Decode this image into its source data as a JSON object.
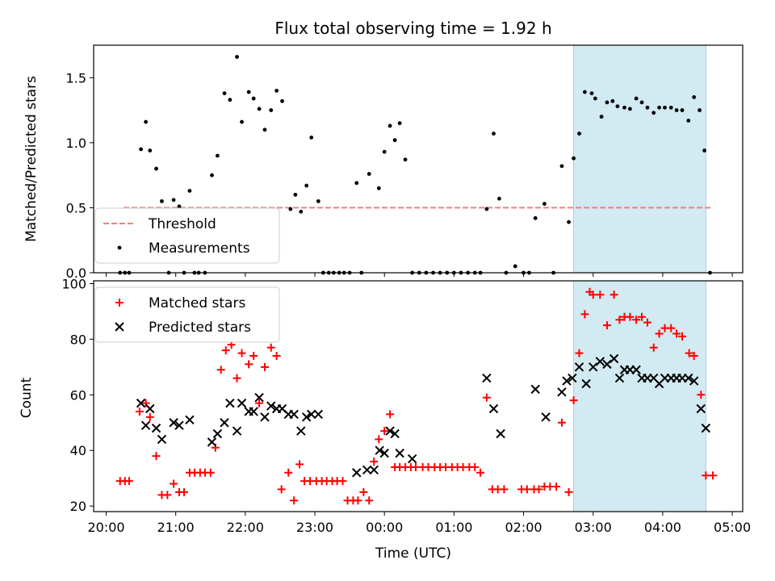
{
  "chart_data": [
    {
      "type": "scatter",
      "title": "Flux total observing time = 1.92 h",
      "xlabel": "",
      "ylabel": "Matched/Predicted stars",
      "xlim": [
        19.82,
        29.15
      ],
      "ylim": [
        0,
        1.75
      ],
      "yticks": [
        {
          "v": 0,
          "label": "0.0"
        },
        {
          "v": 0.5,
          "label": "0.5"
        },
        {
          "v": 1.0,
          "label": "1.0"
        },
        {
          "v": 1.5,
          "label": "1.5"
        }
      ],
      "shaded_region": {
        "x": [
          26.72,
          28.62
        ]
      },
      "legend": {
        "position": "lower-left",
        "entries": [
          "Threshold",
          "Measurements"
        ]
      },
      "series": [
        {
          "name": "Threshold",
          "style": "dashed-line",
          "color": "#f08080",
          "x": [
            20.25,
            28.7
          ],
          "y": [
            0.5,
            0.5
          ]
        },
        {
          "name": "Measurements",
          "style": "dot",
          "color": "#000000",
          "x": [
            20.2,
            20.27,
            20.33,
            20.5,
            20.57,
            20.63,
            20.72,
            20.8,
            20.9,
            20.97,
            21.05,
            21.12,
            21.2,
            21.27,
            21.33,
            21.42,
            21.52,
            21.6,
            21.7,
            21.78,
            21.88,
            21.95,
            22.05,
            22.12,
            22.2,
            22.28,
            22.37,
            22.45,
            22.53,
            22.65,
            22.72,
            22.8,
            22.88,
            22.95,
            23.05,
            23.12,
            23.2,
            23.27,
            23.35,
            23.42,
            23.5,
            23.6,
            23.67,
            23.78,
            23.92,
            24.0,
            24.08,
            24.15,
            24.22,
            24.3,
            24.4,
            24.5,
            24.6,
            24.7,
            24.8,
            24.9,
            25.0,
            25.1,
            25.2,
            25.3,
            25.38,
            25.47,
            25.57,
            25.65,
            25.75,
            25.88,
            26.0,
            26.08,
            26.17,
            26.3,
            26.43,
            26.55,
            26.65,
            26.72,
            26.8,
            26.88,
            26.98,
            27.03,
            27.12,
            27.2,
            27.28,
            27.35,
            27.45,
            27.53,
            27.62,
            27.7,
            27.78,
            27.87,
            27.95,
            28.03,
            28.12,
            28.2,
            28.28,
            28.37,
            28.45,
            28.53,
            28.6,
            28.68
          ],
          "y": [
            0,
            0,
            0,
            0.95,
            1.16,
            0.94,
            0.8,
            0.55,
            0,
            0.56,
            0.51,
            0,
            0.63,
            0,
            0,
            0,
            0.75,
            0.9,
            1.38,
            1.33,
            1.66,
            1.16,
            1.39,
            1.34,
            1.26,
            1.1,
            1.25,
            1.4,
            1.32,
            0.49,
            0.6,
            0.47,
            0.67,
            1.04,
            0.55,
            0,
            0,
            0,
            0,
            0,
            0,
            0.69,
            0,
            0.76,
            0.65,
            0.93,
            1.13,
            1.02,
            1.15,
            0.87,
            0,
            0,
            0,
            0,
            0,
            0,
            0,
            0,
            0,
            0,
            0,
            0.49,
            1.07,
            0.57,
            0,
            0.05,
            0,
            0,
            0.42,
            0.53,
            0,
            0.82,
            0.39,
            0.88,
            1.07,
            1.39,
            1.38,
            1.34,
            1.2,
            1.31,
            1.32,
            1.28,
            1.27,
            1.26,
            1.34,
            1.31,
            1.27,
            1.23,
            1.27,
            1.27,
            1.27,
            1.25,
            1.25,
            1.17,
            1.35,
            1.25,
            0.94,
            0
          ]
        }
      ]
    },
    {
      "type": "scatter",
      "title": "",
      "xlabel": "Time (UTC)",
      "ylabel": "Count",
      "xlim": [
        19.82,
        29.15
      ],
      "ylim": [
        18,
        101
      ],
      "xticks": [
        {
          "v": 20,
          "label": "20:00"
        },
        {
          "v": 21,
          "label": "21:00"
        },
        {
          "v": 22,
          "label": "22:00"
        },
        {
          "v": 23,
          "label": "23:00"
        },
        {
          "v": 24,
          "label": "00:00"
        },
        {
          "v": 25,
          "label": "01:00"
        },
        {
          "v": 26,
          "label": "02:00"
        },
        {
          "v": 27,
          "label": "03:00"
        },
        {
          "v": 28,
          "label": "04:00"
        },
        {
          "v": 29,
          "label": "05:00"
        }
      ],
      "yticks": [
        {
          "v": 20,
          "label": "20"
        },
        {
          "v": 40,
          "label": "40"
        },
        {
          "v": 60,
          "label": "60"
        },
        {
          "v": 80,
          "label": "80"
        },
        {
          "v": 100,
          "label": "100"
        }
      ],
      "shaded_region": {
        "x": [
          26.72,
          28.62
        ]
      },
      "legend": {
        "position": "upper-left",
        "entries": [
          "Matched stars",
          "Predicted stars"
        ]
      },
      "series": [
        {
          "name": "Matched stars",
          "style": "plus",
          "color": "#ff0000",
          "x": [
            20.2,
            20.27,
            20.33,
            20.48,
            20.57,
            20.63,
            20.72,
            20.8,
            20.88,
            20.97,
            21.05,
            21.12,
            21.2,
            21.27,
            21.35,
            21.42,
            21.5,
            21.57,
            21.65,
            21.72,
            21.8,
            21.88,
            21.95,
            22.05,
            22.12,
            22.2,
            22.28,
            22.37,
            22.45,
            22.52,
            22.62,
            22.7,
            22.78,
            22.85,
            22.93,
            23.02,
            23.1,
            23.17,
            23.25,
            23.32,
            23.4,
            23.47,
            23.55,
            23.62,
            23.7,
            23.78,
            23.85,
            23.92,
            24.0,
            24.08,
            24.15,
            24.22,
            24.3,
            24.38,
            24.45,
            24.55,
            24.63,
            24.72,
            24.8,
            24.88,
            24.97,
            25.05,
            25.13,
            25.22,
            25.3,
            25.38,
            25.47,
            25.55,
            25.63,
            25.72,
            25.97,
            26.05,
            26.15,
            26.22,
            26.3,
            26.38,
            26.47,
            26.55,
            26.65,
            26.72,
            26.8,
            26.88,
            26.95,
            27.0,
            27.1,
            27.2,
            27.3,
            27.38,
            27.45,
            27.53,
            27.62,
            27.7,
            27.78,
            27.87,
            27.95,
            28.03,
            28.12,
            28.2,
            28.28,
            28.38,
            28.45,
            28.55,
            28.62,
            28.72
          ],
          "y": [
            29,
            29,
            29,
            54,
            57,
            52,
            38,
            24,
            24,
            28,
            25,
            25,
            32,
            32,
            32,
            32,
            32,
            41,
            69,
            76,
            78,
            66,
            75,
            71,
            74,
            57,
            70,
            77,
            74,
            26,
            32,
            22,
            35,
            29,
            29,
            29,
            29,
            29,
            29,
            29,
            29,
            22,
            22,
            22,
            25,
            22,
            36,
            44,
            47,
            53,
            34,
            34,
            34,
            34,
            34,
            34,
            34,
            34,
            34,
            34,
            34,
            34,
            34,
            34,
            34,
            32,
            59,
            26,
            26,
            26,
            26,
            26,
            26,
            26,
            27,
            27,
            27,
            50,
            25,
            58,
            75,
            89,
            97,
            96,
            96,
            85,
            96,
            87,
            88,
            88,
            87,
            88,
            86,
            77,
            82,
            84,
            84,
            82,
            81,
            75,
            74,
            60,
            31,
            31
          ]
        },
        {
          "name": "Predicted stars",
          "style": "x",
          "color": "#000000",
          "x": [
            20.5,
            20.57,
            20.63,
            20.72,
            20.8,
            20.97,
            21.05,
            21.2,
            21.52,
            21.6,
            21.7,
            21.78,
            21.88,
            21.95,
            22.05,
            22.12,
            22.2,
            22.28,
            22.37,
            22.45,
            22.53,
            22.62,
            22.7,
            22.8,
            22.88,
            22.95,
            23.05,
            23.6,
            23.75,
            23.85,
            23.93,
            24.0,
            24.08,
            24.15,
            24.22,
            24.4,
            25.47,
            25.57,
            25.67,
            26.17,
            26.32,
            26.55,
            26.62,
            26.7,
            26.8,
            26.9,
            27.0,
            27.1,
            27.2,
            27.3,
            27.38,
            27.45,
            27.53,
            27.62,
            27.7,
            27.78,
            27.87,
            27.95,
            28.03,
            28.12,
            28.2,
            28.28,
            28.37,
            28.45,
            28.55,
            28.62
          ],
          "y": [
            57,
            49,
            55,
            48,
            44,
            50,
            49,
            51,
            43,
            46,
            50,
            57,
            47,
            57,
            54,
            54,
            59,
            52,
            56,
            55,
            55,
            53,
            53,
            47,
            52,
            53,
            53,
            32,
            33,
            33,
            40,
            39,
            47,
            46,
            39,
            37,
            66,
            55,
            46,
            62,
            52,
            61,
            65,
            66,
            70,
            64,
            70,
            72,
            71,
            73,
            66,
            69,
            69,
            69,
            66,
            66,
            66,
            64,
            66,
            66,
            66,
            66,
            66,
            65,
            55,
            48
          ]
        }
      ]
    }
  ]
}
